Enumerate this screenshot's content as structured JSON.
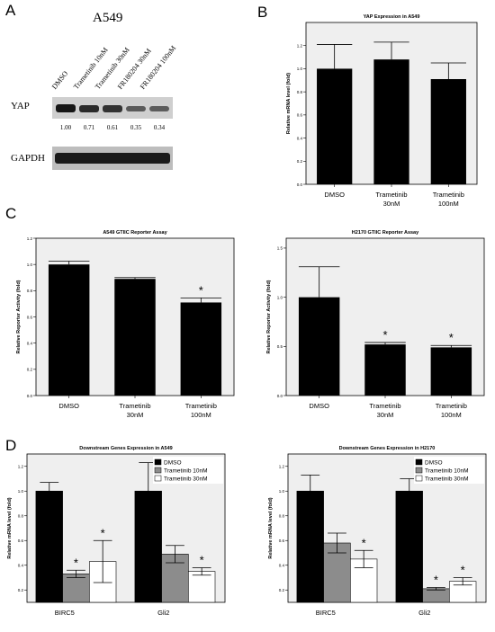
{
  "panels": {
    "A": "A",
    "B": "B",
    "C": "C",
    "D": "D"
  },
  "blot": {
    "title": "A549",
    "lanes": [
      "DMSO",
      "Trametinib 10nM",
      "Trametinib 30nM",
      "FR180204 30nM",
      "FR180204 100nM"
    ],
    "rows": [
      "YAP",
      "GAPDH"
    ],
    "quant": [
      "1.00",
      "0.71",
      "0.61",
      "0.35",
      "0.34"
    ]
  },
  "chart_data": [
    {
      "id": "B",
      "type": "bar",
      "title": "YAP Expression in A549",
      "ylabel": "Relative mRNA level (fold)",
      "xlabel": "",
      "categories": [
        "DMSO",
        "Trametinib 30nM",
        "Trametinib 100nM"
      ],
      "values": [
        1.0,
        1.08,
        0.91
      ],
      "errors": [
        0.21,
        0.15,
        0.14
      ],
      "ylim": [
        0,
        1.4
      ],
      "yticks": [
        "0.0",
        "0.2",
        "0.4",
        "0.6",
        "0.8",
        "1.0",
        "1.2"
      ],
      "grid": false,
      "colors": [
        "#000000"
      ],
      "background": "#efefef"
    },
    {
      "id": "C1",
      "type": "bar",
      "title": "A549 GTIIC Reporter Assay",
      "ylabel": "Relative Reporter Activity (fold)",
      "xlabel": "",
      "categories": [
        "DMSO",
        "Trametinib 30nM",
        "Trametinib 100nM"
      ],
      "values": [
        1.0,
        0.89,
        0.71
      ],
      "errors": [
        0.025,
        0.01,
        0.035
      ],
      "significance": [
        "",
        "",
        "*"
      ],
      "ylim": [
        0,
        1.2
      ],
      "yticks": [
        "0.0",
        "0.2",
        "0.4",
        "0.6",
        "0.8",
        "1.0",
        "1.2"
      ],
      "grid": false,
      "colors": [
        "#000000"
      ],
      "background": "#efefef"
    },
    {
      "id": "C2",
      "type": "bar",
      "title": "H2170 GTIIC Reporter Assay",
      "ylabel": "Relative Reporter Activity (fold)",
      "xlabel": "",
      "categories": [
        "DMSO",
        "Trametinib 30nM",
        "Trametinib 100nM"
      ],
      "values": [
        1.0,
        0.52,
        0.49
      ],
      "errors": [
        0.31,
        0.02,
        0.02
      ],
      "significance": [
        "",
        "*",
        "*"
      ],
      "ylim": [
        0,
        1.6
      ],
      "yticks": [
        "0.0",
        "0.5",
        "1.0",
        "1.5"
      ],
      "grid": false,
      "colors": [
        "#000000"
      ],
      "background": "#efefef"
    },
    {
      "id": "D1",
      "type": "bar",
      "title": "Downstream Genes Expression in A549",
      "ylabel": "Relative mRNA level (fold)",
      "xlabel": "",
      "categories": [
        "BIRC5",
        "Gli2"
      ],
      "series": [
        {
          "name": "DMSO",
          "values": [
            1.0,
            1.0
          ],
          "errors": [
            0.07,
            0.23
          ],
          "color": "#000000",
          "pattern": "solid"
        },
        {
          "name": "Trametinib 10nM",
          "values": [
            0.33,
            0.49
          ],
          "errors": [
            0.03,
            0.07
          ],
          "color": "#8c8c8c",
          "pattern": "solid"
        },
        {
          "name": "Trametinib 30nM",
          "values": [
            0.43,
            0.35
          ],
          "errors": [
            0.17,
            0.03
          ],
          "color": "#ffffff",
          "pattern": "hatch"
        }
      ],
      "significance": [
        [
          "",
          "*",
          "*"
        ],
        [
          "",
          "",
          "*"
        ]
      ],
      "ylim": [
        0.1,
        1.3
      ],
      "yticks": [
        "0.2",
        "0.4",
        "0.6",
        "0.8",
        "1.0",
        "1.2"
      ],
      "legend": "top-right",
      "grid": false,
      "background": "#efefef"
    },
    {
      "id": "D2",
      "type": "bar",
      "title": "Downstream Genes Expression in H2170",
      "ylabel": "Relative mRNA level (fold)",
      "xlabel": "",
      "categories": [
        "BIRC5",
        "Gli2"
      ],
      "series": [
        {
          "name": "DMSO",
          "values": [
            1.0,
            1.0
          ],
          "errors": [
            0.13,
            0.1
          ],
          "color": "#000000",
          "pattern": "solid"
        },
        {
          "name": "Trametinib 10nM",
          "values": [
            0.58,
            0.21
          ],
          "errors": [
            0.08,
            0.01
          ],
          "color": "#8c8c8c",
          "pattern": "solid"
        },
        {
          "name": "Trametinib 30nM",
          "values": [
            0.45,
            0.27
          ],
          "errors": [
            0.07,
            0.03
          ],
          "color": "#ffffff",
          "pattern": "hatch"
        }
      ],
      "significance": [
        [
          "",
          "",
          "*"
        ],
        [
          "",
          "*",
          "*"
        ]
      ],
      "ylim": [
        0.1,
        1.3
      ],
      "yticks": [
        "0.2",
        "0.4",
        "0.6",
        "0.8",
        "1.0",
        "1.2"
      ],
      "legend": "top-right",
      "grid": false,
      "background": "#efefef"
    }
  ]
}
